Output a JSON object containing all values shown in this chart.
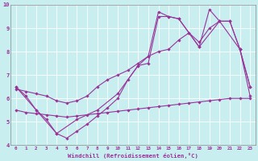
{
  "xlabel": "Windchill (Refroidissement éolien,°C)",
  "bg_color": "#c8eef0",
  "line_color": "#993399",
  "xlim": [
    -0.5,
    23.5
  ],
  "ylim": [
    4,
    10
  ],
  "yticks": [
    4,
    5,
    6,
    7,
    8,
    9,
    10
  ],
  "xticks": [
    0,
    1,
    2,
    3,
    4,
    5,
    6,
    7,
    8,
    9,
    10,
    11,
    12,
    13,
    14,
    15,
    16,
    17,
    18,
    19,
    20,
    21,
    22,
    23
  ],
  "series": [
    {
      "x": [
        0,
        1,
        2,
        3,
        4,
        5,
        6,
        7,
        8,
        9,
        10,
        11,
        12,
        13,
        14,
        15,
        16,
        17,
        18,
        19,
        20,
        21,
        22,
        23
      ],
      "y": [
        5.5,
        5.4,
        5.35,
        5.3,
        5.25,
        5.2,
        5.25,
        5.3,
        5.35,
        5.4,
        5.45,
        5.5,
        5.55,
        5.6,
        5.65,
        5.7,
        5.75,
        5.8,
        5.85,
        5.9,
        5.95,
        6.0,
        6.0,
        6.0
      ]
    },
    {
      "x": [
        0,
        1,
        2,
        3,
        4,
        5,
        6,
        7,
        8,
        9,
        10,
        11,
        12,
        13,
        14,
        15,
        16,
        17,
        18,
        19,
        20,
        21,
        22,
        23
      ],
      "y": [
        6.5,
        6.1,
        5.5,
        5.1,
        4.5,
        4.3,
        4.6,
        4.9,
        5.25,
        5.6,
        6.0,
        6.8,
        7.4,
        7.5,
        9.5,
        9.5,
        9.4,
        8.8,
        8.2,
        9.8,
        9.3,
        9.3,
        8.1,
        6.5
      ]
    },
    {
      "x": [
        0,
        1,
        2,
        3,
        4,
        5,
        6,
        7,
        8,
        9,
        10,
        11,
        12,
        13,
        14,
        15,
        16,
        17,
        18,
        19,
        20,
        21,
        22,
        23
      ],
      "y": [
        6.4,
        6.3,
        6.2,
        6.1,
        5.9,
        5.8,
        5.9,
        6.1,
        6.5,
        6.8,
        7.0,
        7.2,
        7.5,
        7.8,
        8.0,
        8.1,
        8.5,
        8.8,
        8.4,
        9.0,
        9.3,
        9.3,
        8.1,
        6.1
      ]
    },
    {
      "x": [
        0,
        2,
        4,
        6,
        8,
        10,
        12,
        13,
        14,
        15,
        16,
        18,
        20,
        22,
        23
      ],
      "y": [
        6.5,
        5.5,
        4.5,
        5.1,
        5.5,
        6.2,
        7.4,
        7.8,
        9.7,
        9.5,
        9.4,
        8.2,
        9.3,
        8.1,
        6.5
      ]
    }
  ]
}
